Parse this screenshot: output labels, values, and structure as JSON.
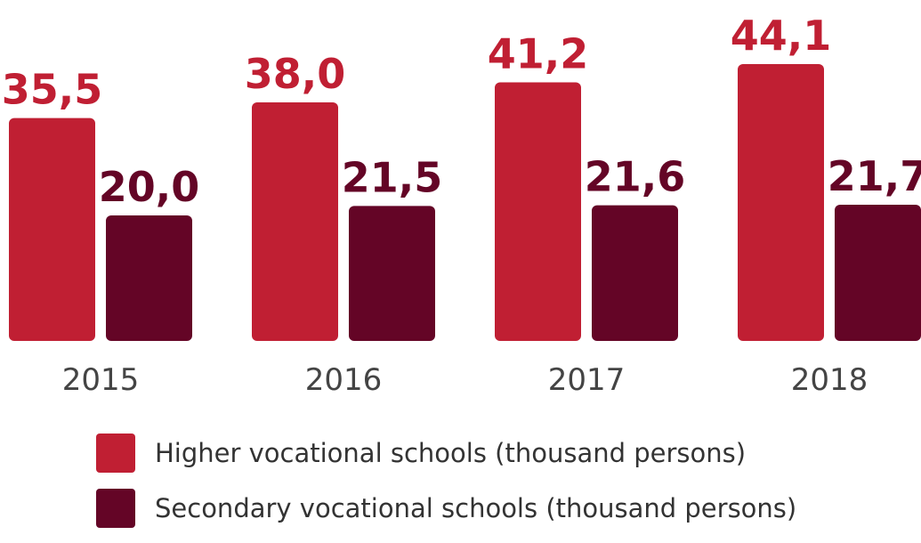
{
  "chart_data": {
    "type": "bar",
    "categories": [
      "2015",
      "2016",
      "2017",
      "2018"
    ],
    "series": [
      {
        "name": "Higher vocational schools (thousand persons)",
        "values": [
          35.5,
          38.0,
          41.2,
          44.1
        ],
        "labels": [
          "35,5",
          "38,0",
          "41,2",
          "44,1"
        ],
        "color": "#c01f33"
      },
      {
        "name": "Secondary vocational schools (thousand persons)",
        "values": [
          20.0,
          21.5,
          21.6,
          21.7
        ],
        "labels": [
          "20,0",
          "21,5",
          "21,6",
          "21,7"
        ],
        "color": "#640526"
      }
    ],
    "ylim": [
      0,
      44.1
    ],
    "grid": false,
    "legend_position": "bottom"
  }
}
